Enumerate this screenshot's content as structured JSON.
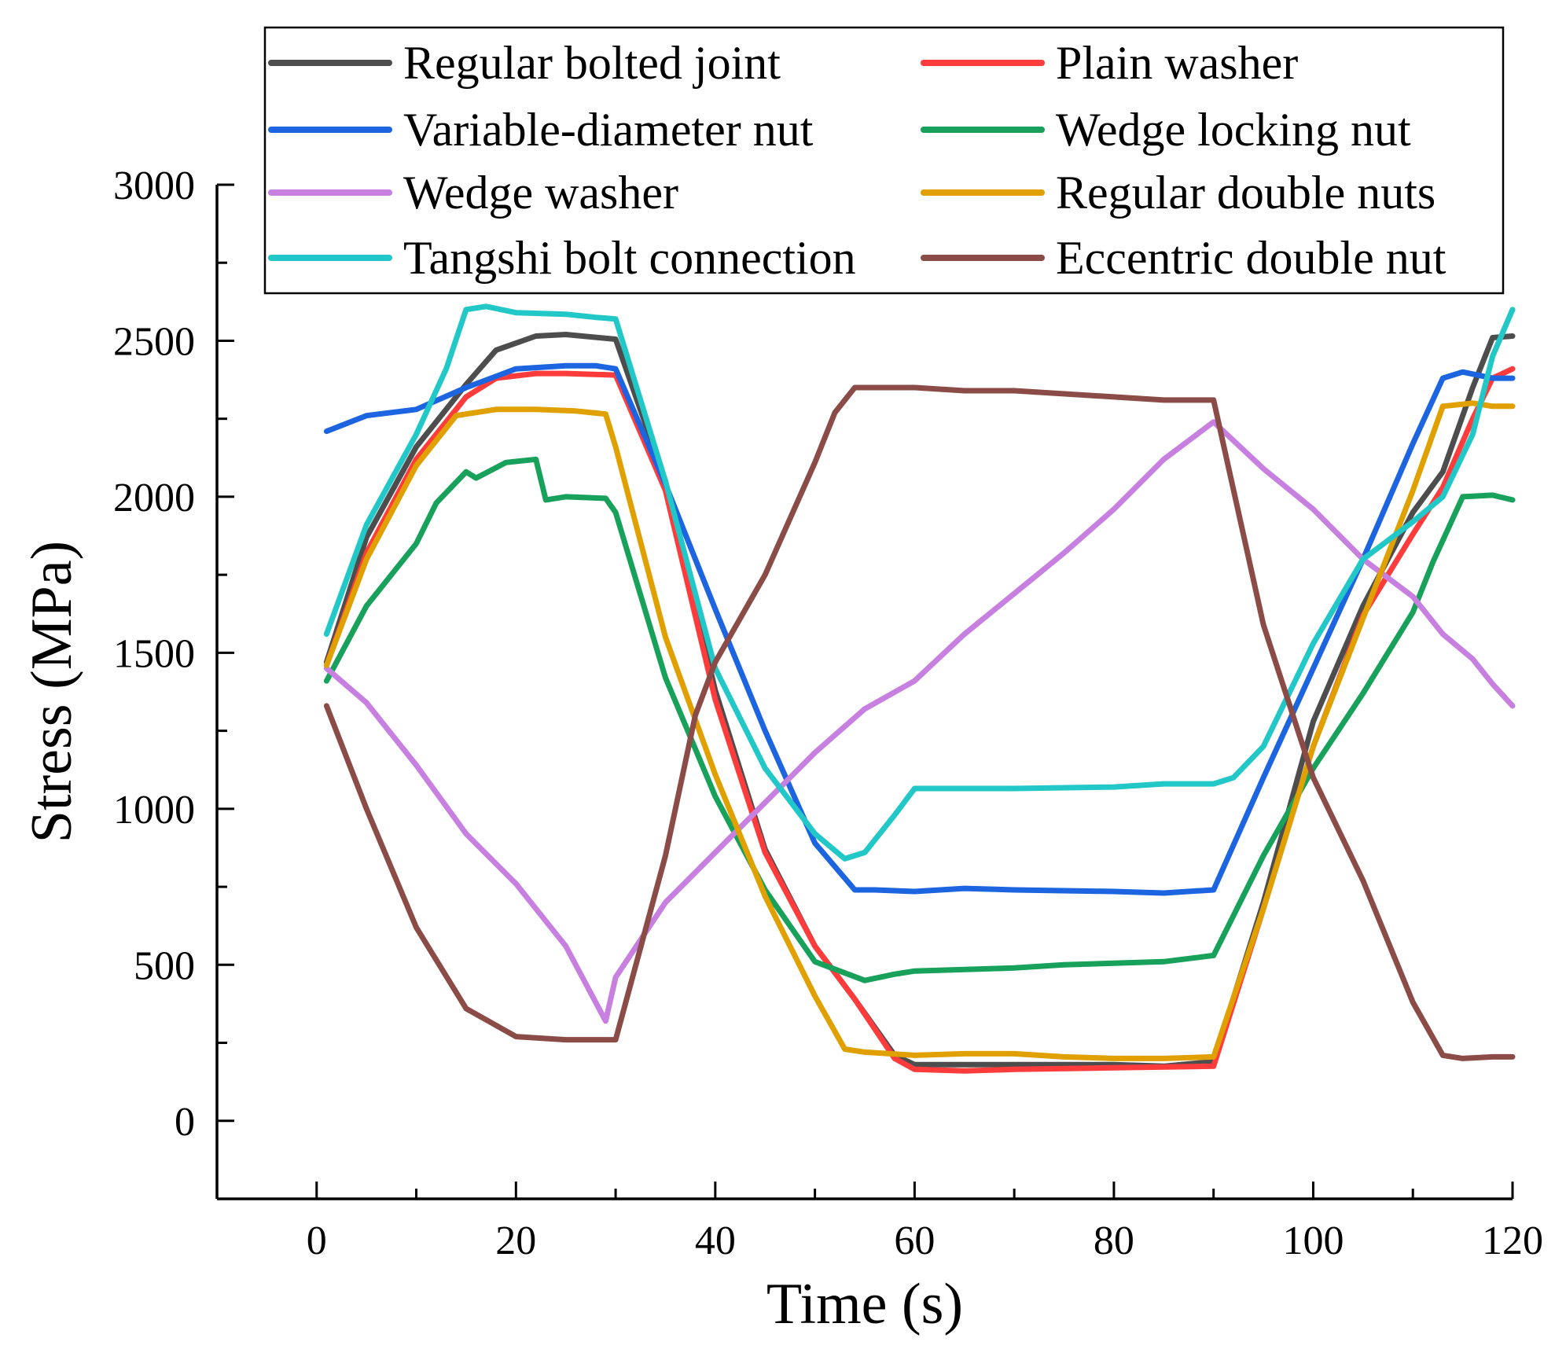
{
  "chart_data": {
    "type": "line",
    "title": "",
    "xlabel": "Time (s)",
    "ylabel": "Stress (MPa)",
    "xlim": [
      -10,
      120
    ],
    "ylim": [
      -250,
      3000
    ],
    "xticks": [
      0,
      20,
      40,
      60,
      80,
      100,
      120
    ],
    "yticks": [
      0,
      500,
      1000,
      1500,
      2000,
      2500,
      3000
    ],
    "grid": false,
    "legend_position": "top",
    "series": [
      {
        "name": "Regular bolted joint",
        "color": "#4d4d4d",
        "x": [
          1,
          5,
          10,
          15,
          18,
          22,
          25,
          30,
          35,
          40,
          45,
          50,
          54,
          58,
          60,
          65,
          70,
          80,
          85,
          90,
          95,
          100,
          105,
          110,
          113,
          116,
          118,
          120
        ],
        "y": [
          1470,
          1870,
          2160,
          2360,
          2470,
          2515,
          2520,
          2505,
          2050,
          1380,
          870,
          560,
          390,
          210,
          180,
          180,
          180,
          180,
          175,
          190,
          700,
          1280,
          1650,
          1950,
          2080,
          2350,
          2510,
          2515
        ]
      },
      {
        "name": "Plain washer",
        "color": "#ff3b3b",
        "x": [
          1,
          5,
          10,
          15,
          18,
          22,
          25,
          30,
          35,
          40,
          45,
          50,
          54,
          58,
          60,
          65,
          70,
          80,
          90,
          95,
          100,
          105,
          110,
          113,
          116,
          118,
          120
        ],
        "y": [
          1460,
          1820,
          2120,
          2320,
          2380,
          2395,
          2395,
          2390,
          2020,
          1350,
          860,
          560,
          390,
          200,
          165,
          160,
          165,
          170,
          175,
          680,
          1200,
          1620,
          1880,
          2030,
          2250,
          2380,
          2410
        ]
      },
      {
        "name": "Variable-diameter nut",
        "color": "#1c64e0",
        "x": [
          1,
          5,
          10,
          15,
          20,
          25,
          28,
          30,
          35,
          40,
          45,
          50,
          54,
          56,
          60,
          65,
          70,
          80,
          85,
          90,
          95,
          100,
          105,
          110,
          113,
          115,
          118,
          120
        ],
        "y": [
          2210,
          2260,
          2280,
          2350,
          2410,
          2420,
          2420,
          2410,
          2040,
          1640,
          1250,
          890,
          740,
          740,
          735,
          745,
          740,
          735,
          730,
          740,
          1100,
          1450,
          1800,
          2170,
          2380,
          2400,
          2380,
          2380
        ]
      },
      {
        "name": "Wedge locking nut",
        "color": "#18a15a",
        "x": [
          1,
          5,
          10,
          12,
          15,
          16,
          19,
          22,
          23,
          25,
          29,
          30,
          35,
          40,
          45,
          50,
          55,
          58,
          60,
          65,
          70,
          75,
          80,
          85,
          90,
          95,
          100,
          105,
          110,
          112,
          115,
          118,
          120
        ],
        "y": [
          1410,
          1650,
          1850,
          1980,
          2080,
          2060,
          2110,
          2120,
          1990,
          2000,
          1995,
          1950,
          1420,
          1040,
          740,
          510,
          450,
          470,
          480,
          485,
          490,
          500,
          505,
          510,
          530,
          850,
          1130,
          1370,
          1630,
          1790,
          2000,
          2005,
          1990
        ]
      },
      {
        "name": "Wedge washer",
        "color": "#c77fe0",
        "x": [
          1,
          5,
          10,
          15,
          20,
          25,
          29,
          30,
          35,
          40,
          45,
          50,
          55,
          60,
          65,
          70,
          75,
          80,
          85,
          90,
          95,
          100,
          105,
          110,
          113,
          116,
          118,
          120
        ],
        "y": [
          1450,
          1340,
          1140,
          920,
          760,
          560,
          320,
          460,
          700,
          860,
          1020,
          1180,
          1320,
          1410,
          1560,
          1690,
          1820,
          1960,
          2120,
          2240,
          2090,
          1960,
          1800,
          1680,
          1560,
          1480,
          1400,
          1330
        ]
      },
      {
        "name": "Regular double nuts",
        "color": "#e0a000",
        "x": [
          1,
          5,
          10,
          14,
          18,
          22,
          26,
          29,
          30,
          35,
          40,
          45,
          50,
          53,
          55,
          60,
          65,
          70,
          75,
          80,
          85,
          90,
          95,
          100,
          105,
          110,
          113,
          116,
          118,
          120
        ],
        "y": [
          1460,
          1800,
          2100,
          2260,
          2280,
          2280,
          2275,
          2265,
          2160,
          1550,
          1110,
          720,
          400,
          230,
          220,
          210,
          215,
          215,
          205,
          200,
          200,
          205,
          680,
          1200,
          1610,
          2020,
          2290,
          2300,
          2290,
          2290
        ]
      },
      {
        "name": "Tangshi bolt connection",
        "color": "#22c7c7",
        "x": [
          1,
          5,
          10,
          13,
          15,
          17,
          20,
          25,
          28,
          30,
          35,
          40,
          45,
          50,
          53,
          55,
          58,
          60,
          65,
          70,
          80,
          85,
          90,
          92,
          95,
          100,
          105,
          110,
          113,
          116,
          118,
          120
        ],
        "y": [
          1560,
          1910,
          2200,
          2410,
          2600,
          2610,
          2590,
          2585,
          2575,
          2570,
          2050,
          1450,
          1130,
          920,
          840,
          860,
          980,
          1065,
          1065,
          1065,
          1070,
          1080,
          1080,
          1100,
          1200,
          1530,
          1800,
          1920,
          2000,
          2200,
          2450,
          2600
        ]
      },
      {
        "name": "Eccentric double nut",
        "color": "#8b4c47",
        "x": [
          1,
          5,
          10,
          15,
          20,
          25,
          30,
          35,
          38,
          40,
          45,
          50,
          52,
          54,
          56,
          60,
          65,
          70,
          80,
          85,
          90,
          95,
          100,
          105,
          110,
          113,
          115,
          118,
          120
        ],
        "y": [
          1330,
          1000,
          620,
          360,
          270,
          260,
          260,
          850,
          1300,
          1470,
          1750,
          2110,
          2270,
          2350,
          2350,
          2350,
          2340,
          2340,
          2320,
          2310,
          2310,
          1590,
          1100,
          770,
          380,
          210,
          200,
          205,
          205
        ]
      }
    ]
  }
}
